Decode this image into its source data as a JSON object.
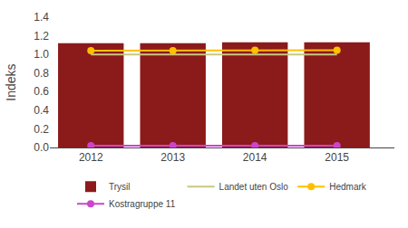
{
  "chart_data": {
    "type": "bar",
    "x": [
      2012,
      2013,
      2014,
      2015
    ],
    "series": [
      {
        "name": "Trysil",
        "type": "bar",
        "color": "#8B1A1A",
        "values": [
          1.12,
          1.12,
          1.13,
          1.13
        ]
      },
      {
        "name": "Landet uten Oslo",
        "type": "line",
        "color": "#C8C880",
        "values": [
          1.0,
          1.0,
          1.0,
          1.0
        ]
      },
      {
        "name": "Hedmark",
        "type": "line",
        "color": "#FFC000",
        "marker": "circle",
        "values": [
          1.04,
          1.04,
          1.045,
          1.045
        ]
      },
      {
        "name": "Kostragruppe 11",
        "type": "line",
        "color": "#CC44CC",
        "marker": "circle",
        "values": [
          0.02,
          0.02,
          0.02,
          0.02
        ]
      }
    ],
    "y_label": "Indeks",
    "xlim": [
      2011.5,
      2015.7
    ],
    "xticks": [
      2012,
      2013,
      2014,
      2015
    ],
    "ylim": [
      0,
      1.4
    ],
    "yticks": [
      {
        "value": 0,
        "label": "0.0"
      },
      0.2,
      0.4,
      0.6,
      0.8,
      {
        "value": 1.0,
        "label": "1.0"
      },
      1.2,
      1.4
    ],
    "grid": false,
    "legend": "bottom"
  }
}
